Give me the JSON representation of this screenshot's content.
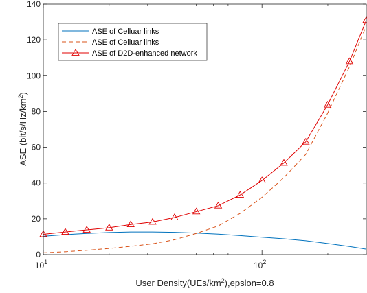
{
  "chart_data": {
    "type": "line",
    "xlabel": "User Density(UEs/km",
    "xlabel_sup": "2",
    "xlabel_tail": "),epslon=0.8",
    "ylabel": "ASE (bit/s/Hz/km",
    "ylabel_sup": "2",
    "ylabel_tail": ")",
    "xscale": "log",
    "xlim": [
      10,
      300
    ],
    "ylim": [
      0,
      140
    ],
    "xticks": [
      {
        "value": 10,
        "base": "10",
        "exp": "1"
      },
      {
        "value": 100,
        "base": "10",
        "exp": "2"
      }
    ],
    "yticks": [
      "0",
      "20",
      "40",
      "60",
      "80",
      "100",
      "120",
      "140"
    ],
    "grid": false,
    "legend_position": "top-left",
    "series": [
      {
        "name": "ASE of Celluar links",
        "color": "#0072BD",
        "style": "solid",
        "marker": "none",
        "x": [
          10,
          12.6,
          15.8,
          20,
          25.1,
          31.6,
          39.8,
          50.1,
          63.1,
          79.4,
          100,
          125.9,
          158.5,
          199.5,
          251.2,
          300
        ],
        "y": [
          10.2,
          11.1,
          11.8,
          12.3,
          12.6,
          12.6,
          12.4,
          12.0,
          11.4,
          10.6,
          9.7,
          8.8,
          7.7,
          6.2,
          4.5,
          3.0
        ]
      },
      {
        "name": "ASE of Celluar links",
        "color": "#D95319",
        "style": "dashed",
        "marker": "none",
        "x": [
          10,
          12.6,
          15.8,
          20,
          25.1,
          31.6,
          39.8,
          50.1,
          63.1,
          79.4,
          100,
          125.9,
          158.5,
          199.5,
          251.2,
          300
        ],
        "y": [
          1.0,
          1.6,
          2.4,
          3.4,
          4.6,
          6.0,
          8.3,
          11.8,
          16.0,
          23.0,
          32.0,
          43.0,
          56.0,
          79.0,
          105.0,
          128.0
        ]
      },
      {
        "name": "ASE of D2D-enhanced network",
        "color": "#E00000",
        "style": "solid",
        "marker": "triangle",
        "x": [
          10,
          12.6,
          15.8,
          20,
          25.1,
          31.6,
          39.8,
          50.1,
          63.1,
          79.4,
          100,
          125.9,
          158.5,
          199.5,
          251.2,
          300
        ],
        "y": [
          11.3,
          12.6,
          13.8,
          15.0,
          16.8,
          18.2,
          20.7,
          24.0,
          27.3,
          33.3,
          41.4,
          51.2,
          63.0,
          83.7,
          108.0,
          131.0
        ]
      }
    ]
  }
}
